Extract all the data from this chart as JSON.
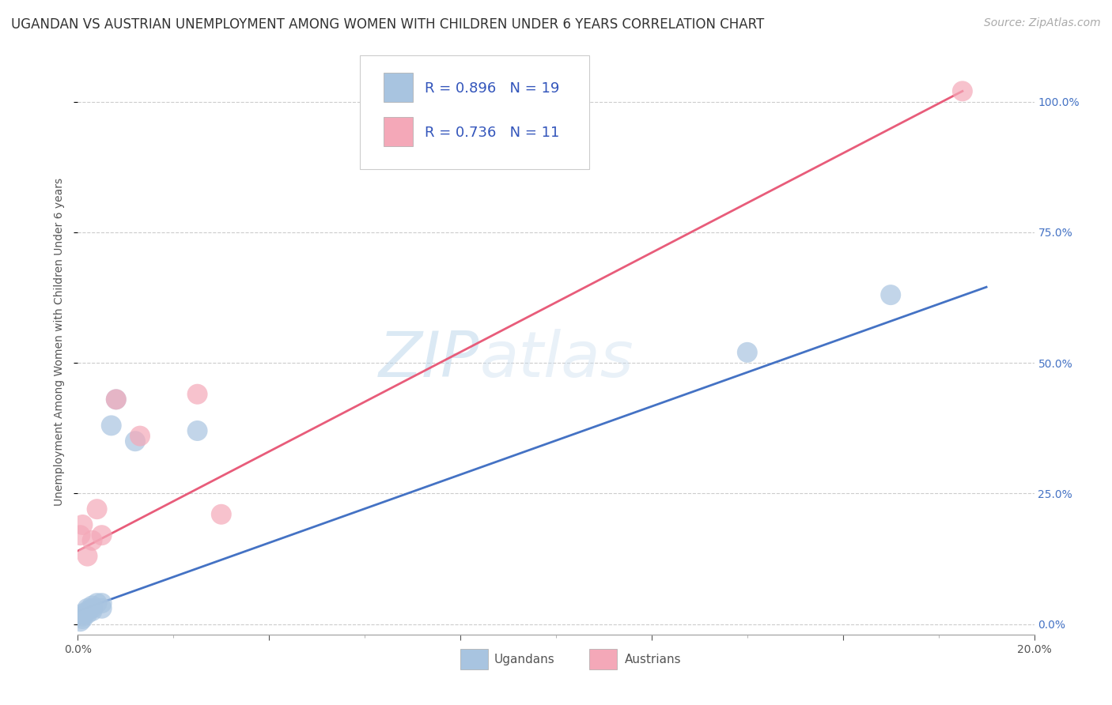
{
  "title": "UGANDAN VS AUSTRIAN UNEMPLOYMENT AMONG WOMEN WITH CHILDREN UNDER 6 YEARS CORRELATION CHART",
  "source": "Source: ZipAtlas.com",
  "ylabel": "Unemployment Among Women with Children Under 6 years",
  "watermark_zip": "ZIP",
  "watermark_atlas": "atlas",
  "blue_label": "Ugandans",
  "pink_label": "Austrians",
  "blue_R": 0.896,
  "blue_N": 19,
  "pink_R": 0.736,
  "pink_N": 11,
  "blue_color": "#A8C4E0",
  "pink_color": "#F4A8B8",
  "blue_line_color": "#4472C4",
  "pink_line_color": "#E85C7A",
  "background_color": "#FFFFFF",
  "xlim": [
    0.0,
    0.2
  ],
  "ylim": [
    -0.02,
    1.1
  ],
  "xticks": [
    0.0,
    0.04,
    0.08,
    0.12,
    0.16,
    0.2
  ],
  "yticks": [
    0.0,
    0.25,
    0.5,
    0.75,
    1.0
  ],
  "blue_points_x": [
    0.0005,
    0.001,
    0.001,
    0.001,
    0.002,
    0.002,
    0.002,
    0.003,
    0.003,
    0.003,
    0.004,
    0.005,
    0.005,
    0.007,
    0.008,
    0.012,
    0.025,
    0.14,
    0.17
  ],
  "blue_points_y": [
    0.005,
    0.01,
    0.015,
    0.02,
    0.02,
    0.025,
    0.03,
    0.025,
    0.03,
    0.035,
    0.04,
    0.03,
    0.04,
    0.38,
    0.43,
    0.35,
    0.37,
    0.52,
    0.63
  ],
  "pink_points_x": [
    0.0005,
    0.001,
    0.002,
    0.003,
    0.004,
    0.005,
    0.008,
    0.013,
    0.025,
    0.03,
    0.185
  ],
  "pink_points_y": [
    0.17,
    0.19,
    0.13,
    0.16,
    0.22,
    0.17,
    0.43,
    0.36,
    0.44,
    0.21,
    1.02
  ],
  "blue_line_x": [
    0.0,
    0.19
  ],
  "blue_line_y": [
    0.025,
    0.645
  ],
  "pink_line_x": [
    0.0,
    0.185
  ],
  "pink_line_y": [
    0.14,
    1.02
  ],
  "grid_color": "#CCCCCC",
  "right_tick_color": "#4472C4",
  "title_fontsize": 12,
  "axis_label_fontsize": 10,
  "tick_fontsize": 10,
  "legend_fontsize": 13,
  "source_fontsize": 10
}
